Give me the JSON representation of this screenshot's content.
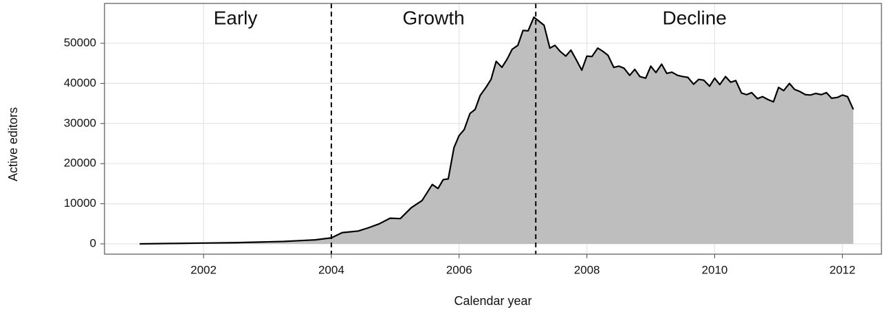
{
  "chart_data": {
    "type": "area",
    "x_label": "Calendar year",
    "y_label": "Active editors",
    "x": [
      2001.0,
      2001.5,
      2002.0,
      2002.5,
      2003.0,
      2003.25,
      2003.5,
      2003.75,
      2004.0,
      2004.17,
      2004.42,
      2004.58,
      2004.75,
      2004.92,
      2005.08,
      2005.25,
      2005.42,
      2005.58,
      2005.67,
      2005.75,
      2005.83,
      2005.92,
      2006.0,
      2006.08,
      2006.17,
      2006.25,
      2006.33,
      2006.42,
      2006.5,
      2006.58,
      2006.67,
      2006.75,
      2006.83,
      2006.92,
      2007.0,
      2007.08,
      2007.17,
      2007.25,
      2007.33,
      2007.42,
      2007.5,
      2007.58,
      2007.67,
      2007.75,
      2007.83,
      2007.92,
      2008.0,
      2008.08,
      2008.17,
      2008.25,
      2008.33,
      2008.42,
      2008.5,
      2008.58,
      2008.67,
      2008.75,
      2008.83,
      2008.92,
      2009.0,
      2009.08,
      2009.17,
      2009.25,
      2009.33,
      2009.42,
      2009.5,
      2009.58,
      2009.67,
      2009.75,
      2009.83,
      2009.92,
      2010.0,
      2010.08,
      2010.17,
      2010.25,
      2010.33,
      2010.42,
      2010.5,
      2010.58,
      2010.67,
      2010.75,
      2010.83,
      2010.92,
      2011.0,
      2011.08,
      2011.17,
      2011.25,
      2011.33,
      2011.42,
      2011.5,
      2011.58,
      2011.67,
      2011.75,
      2011.83,
      2011.92,
      2012.0,
      2012.08,
      2012.17
    ],
    "series": [
      {
        "color": "#000000",
        "fill": "#bebebe",
        "values": [
          0,
          100,
          200,
          300,
          500,
          600,
          800,
          1000,
          1500,
          2800,
          3200,
          4000,
          5000,
          6400,
          6300,
          9000,
          10800,
          14800,
          13800,
          16000,
          16200,
          24000,
          27000,
          28500,
          32500,
          33500,
          37000,
          39000,
          41000,
          45500,
          44000,
          46000,
          48500,
          49500,
          53200,
          53100,
          56500,
          55500,
          54500,
          48800,
          49500,
          48000,
          46800,
          48300,
          46000,
          43300,
          46800,
          46700,
          48800,
          48000,
          47000,
          44000,
          44300,
          43800,
          42000,
          43500,
          41700,
          41300,
          44300,
          42700,
          44800,
          42500,
          42800,
          42000,
          41700,
          41500,
          39800,
          41000,
          40800,
          39300,
          41300,
          39700,
          41700,
          40300,
          40700,
          37600,
          37200,
          37700,
          36200,
          36700,
          36000,
          35400,
          39000,
          38200,
          40000,
          38500,
          38000,
          37200,
          37100,
          37500,
          37200,
          37700,
          36300,
          36500,
          37100,
          36700,
          33500
        ]
      }
    ],
    "phase_boundaries": [
      2004.0,
      2007.2
    ],
    "phases": [
      "Early",
      "Growth",
      "Decline"
    ],
    "xlim": [
      2000.45,
      2012.61
    ],
    "xticks": [
      2002,
      2004,
      2006,
      2008,
      2010,
      2012
    ],
    "ylim": [
      -2570,
      59930
    ],
    "yticks": [
      0,
      10000,
      20000,
      30000,
      40000,
      50000
    ],
    "grid": true
  }
}
